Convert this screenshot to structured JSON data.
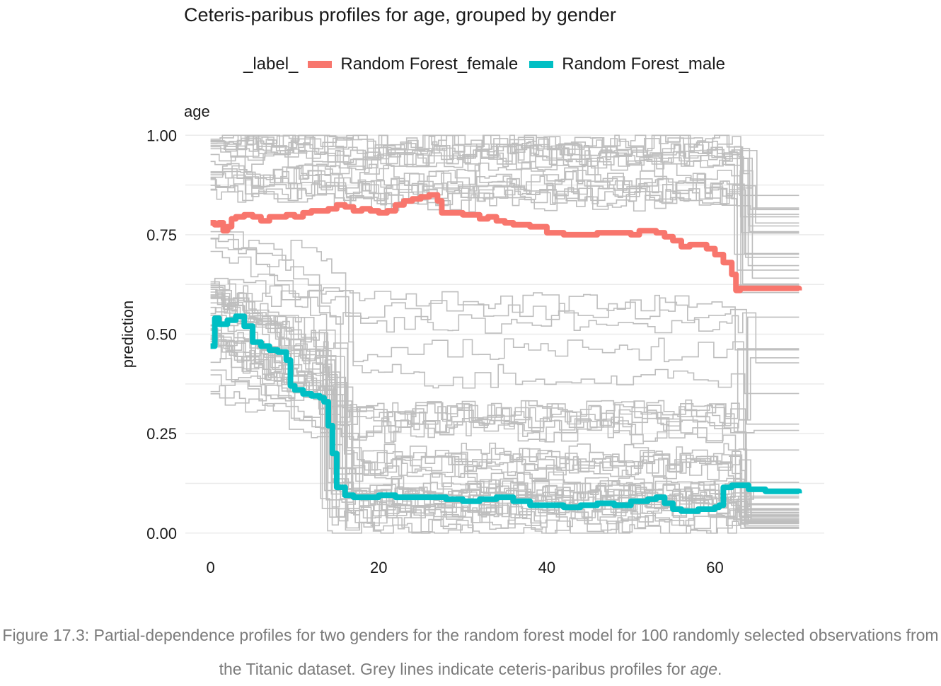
{
  "chart_data": {
    "type": "line",
    "title": "Ceteris-paribus profiles for age, grouped by gender",
    "facet_label": "age",
    "xlabel": "",
    "ylabel": "prediction",
    "xlim": [
      -3,
      73
    ],
    "ylim": [
      -0.02,
      1.02
    ],
    "x_ticks": [
      0,
      20,
      40,
      60
    ],
    "x_tick_labels": [
      "0",
      "20",
      "40",
      "60"
    ],
    "y_ticks": [
      0,
      0.25,
      0.5,
      0.75,
      1.0
    ],
    "y_tick_labels": [
      "0.00",
      "0.25",
      "0.50",
      "0.75",
      "1.00"
    ],
    "grid": true,
    "legend": {
      "title": "_label_",
      "position": "top",
      "entries": [
        {
          "name": "Random Forest_female",
          "color": "#F8766D"
        },
        {
          "name": "Random Forest_male",
          "color": "#00BFC4"
        }
      ]
    },
    "background_lines_color": "#bebebe",
    "series": [
      {
        "name": "Random Forest_female",
        "color": "#F8766D",
        "x": [
          0,
          0.5,
          1,
          1.5,
          2,
          2.5,
          3,
          4,
          5,
          6,
          7,
          8,
          9,
          10,
          11,
          12,
          13,
          14,
          15,
          16,
          17,
          18,
          19,
          20,
          21,
          22,
          23,
          24,
          25,
          26,
          27,
          27.5,
          28,
          30,
          32,
          33,
          34,
          35,
          36,
          38,
          40,
          42,
          44,
          46,
          48,
          50,
          51,
          52,
          53,
          54,
          55,
          56,
          57,
          58,
          59,
          60,
          61,
          62,
          62.5,
          63,
          65,
          70
        ],
        "values": [
          0.78,
          0.775,
          0.78,
          0.76,
          0.77,
          0.79,
          0.795,
          0.8,
          0.795,
          0.785,
          0.795,
          0.795,
          0.8,
          0.795,
          0.805,
          0.81,
          0.81,
          0.815,
          0.825,
          0.82,
          0.81,
          0.815,
          0.81,
          0.805,
          0.81,
          0.825,
          0.835,
          0.84,
          0.845,
          0.85,
          0.835,
          0.805,
          0.805,
          0.8,
          0.79,
          0.795,
          0.785,
          0.78,
          0.775,
          0.77,
          0.755,
          0.75,
          0.75,
          0.755,
          0.755,
          0.75,
          0.76,
          0.76,
          0.755,
          0.745,
          0.735,
          0.72,
          0.725,
          0.725,
          0.715,
          0.7,
          0.68,
          0.65,
          0.61,
          0.615,
          0.615,
          0.61
        ]
      },
      {
        "name": "Random Forest_male",
        "color": "#00BFC4",
        "x": [
          0,
          0.5,
          1,
          2,
          3,
          4,
          5,
          6,
          7,
          8,
          9,
          9.5,
          10,
          11,
          12,
          13,
          13.5,
          14,
          14.5,
          15,
          16,
          17,
          18,
          20,
          22,
          24,
          26,
          28,
          30,
          32,
          34,
          36,
          38,
          40,
          42,
          44,
          46,
          48,
          50,
          52,
          53,
          54,
          55,
          56,
          58,
          60,
          60.5,
          61,
          62,
          64,
          66,
          70
        ],
        "values": [
          0.47,
          0.54,
          0.525,
          0.535,
          0.545,
          0.52,
          0.48,
          0.47,
          0.46,
          0.455,
          0.435,
          0.37,
          0.36,
          0.35,
          0.345,
          0.34,
          0.33,
          0.27,
          0.2,
          0.115,
          0.095,
          0.09,
          0.09,
          0.095,
          0.09,
          0.09,
          0.09,
          0.085,
          0.08,
          0.085,
          0.09,
          0.08,
          0.07,
          0.07,
          0.065,
          0.07,
          0.075,
          0.07,
          0.08,
          0.085,
          0.09,
          0.075,
          0.06,
          0.055,
          0.06,
          0.065,
          0.07,
          0.115,
          0.12,
          0.11,
          0.105,
          0.1
        ]
      }
    ]
  },
  "caption": {
    "main": "Figure 17.3: Partial-dependence profiles for two genders for the random forest model for 100 randomly selected observations from the Titanic dataset. Grey lines indicate ceteris-paribus profiles for",
    "emphasis": "age",
    "end": "."
  }
}
